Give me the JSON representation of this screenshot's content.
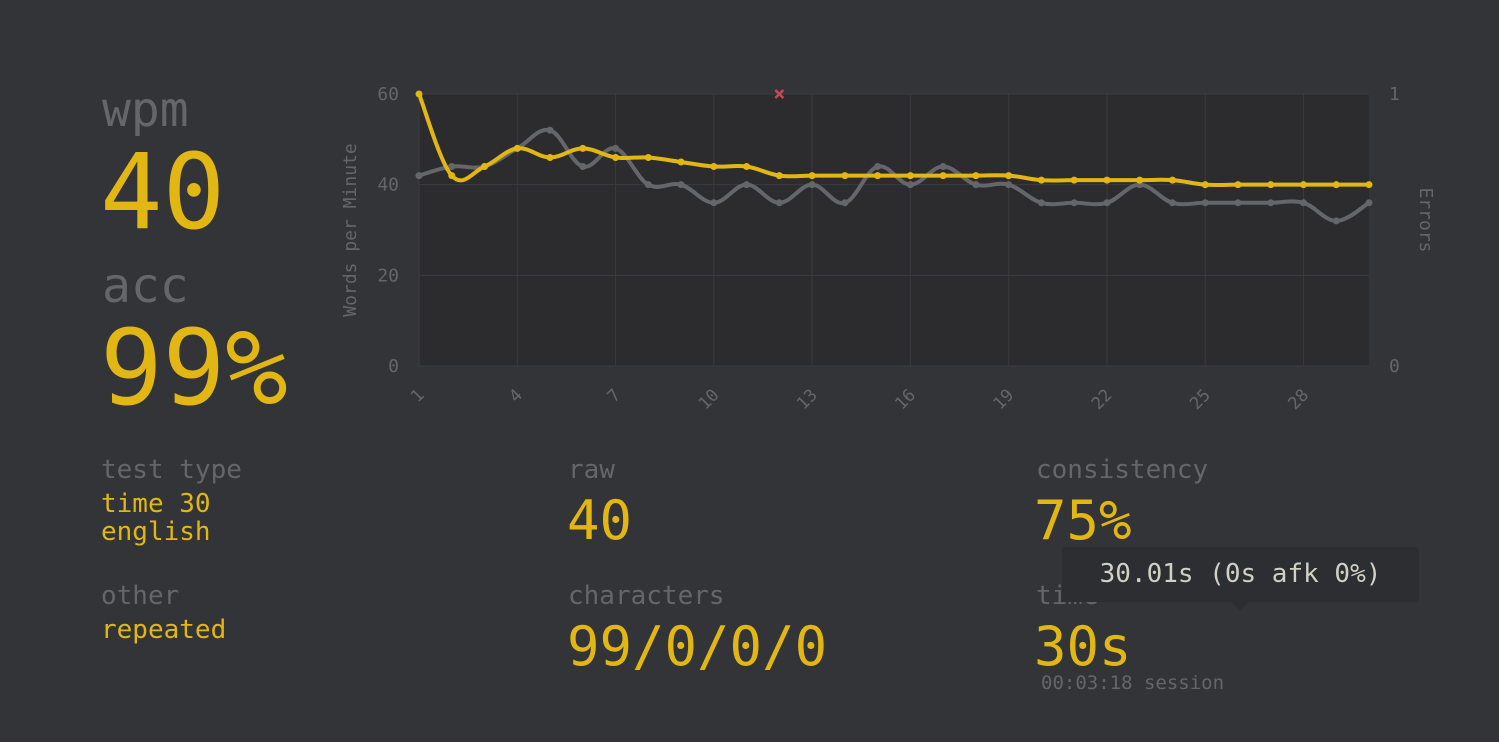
{
  "stats": {
    "wpm_label": "wpm",
    "wpm_value": "40",
    "acc_label": "acc",
    "acc_value": "99%"
  },
  "details": {
    "test_type_label": "test type",
    "test_type_line1": "time 30",
    "test_type_line2": "english",
    "other_label": "other",
    "other_value": "repeated",
    "raw_label": "raw",
    "raw_value": "40",
    "characters_label": "characters",
    "characters_value": "99/0/0/0",
    "consistency_label": "consistency",
    "consistency_value": "75%",
    "time_label": "time",
    "time_value": "30s",
    "session_text": "00:03:18 session",
    "tooltip_text": "30.01s (0s afk 0%)"
  },
  "colors": {
    "background": "#323437",
    "accent": "#e2b714",
    "sub": "#646669",
    "raw_line": "#646669",
    "error": "#ca4754"
  },
  "chart_data": {
    "type": "line",
    "x": [
      1,
      2,
      3,
      4,
      5,
      6,
      7,
      8,
      9,
      10,
      11,
      12,
      13,
      14,
      15,
      16,
      17,
      18,
      19,
      20,
      21,
      22,
      23,
      24,
      25,
      26,
      27,
      28,
      29,
      30
    ],
    "x_ticks": [
      "1",
      "4",
      "7",
      "10",
      "13",
      "16",
      "19",
      "22",
      "25",
      "28"
    ],
    "y_ticks": [
      "0",
      "20",
      "40",
      "60"
    ],
    "y2_ticks": [
      "0",
      "1"
    ],
    "ylabel": "Words per Minute",
    "y2label": "Errors",
    "ylim": [
      0,
      60
    ],
    "y2lim": [
      0,
      1
    ],
    "grid": true,
    "series": [
      {
        "values": [
          60,
          42,
          44,
          48,
          46,
          48,
          46,
          46,
          45,
          44,
          44,
          42,
          42,
          42,
          42,
          42,
          42,
          42,
          42,
          41,
          41,
          41,
          41,
          41,
          40,
          40,
          40,
          40,
          40,
          40
        ],
        "color": "#e2b714"
      },
      {
        "values": [
          42,
          44,
          44,
          48,
          52,
          44,
          48,
          40,
          40,
          36,
          40,
          36,
          40,
          36,
          44,
          40,
          44,
          40,
          40,
          36,
          36,
          36,
          40,
          36,
          36,
          36,
          36,
          36,
          32,
          36
        ],
        "color": "#646669"
      }
    ],
    "errors": [
      {
        "x": 12,
        "y2": 1
      }
    ]
  }
}
